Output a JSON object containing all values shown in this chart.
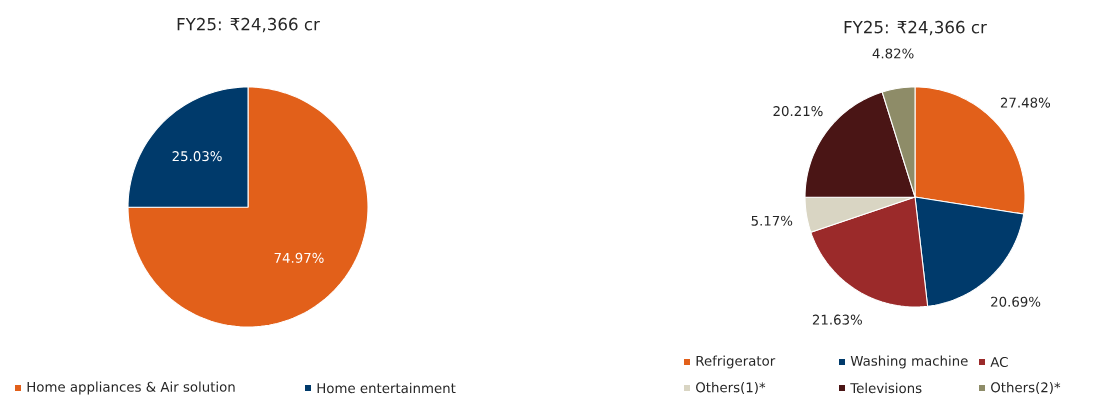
{
  "chart_data": [
    {
      "type": "pie",
      "title": "FY25: ₹24,366 cr",
      "categories": [
        "Home appliances & Air solution",
        "Home entertainment"
      ],
      "values": [
        74.97,
        25.03
      ],
      "colors": [
        "#e2601a",
        "#003a6b"
      ],
      "value_labels": [
        "74.97%",
        "25.03%"
      ],
      "legend": "bottom"
    },
    {
      "type": "pie",
      "title": "FY25: ₹24,366 cr",
      "categories": [
        "Refrigerator",
        "Washing machine",
        "AC",
        "Others(1)*",
        "Televisions",
        "Others(2)*"
      ],
      "values": [
        27.48,
        20.69,
        21.63,
        5.17,
        20.21,
        4.82
      ],
      "colors": [
        "#e2601a",
        "#003a6b",
        "#9b2a2a",
        "#d9d5c3",
        "#4a1515",
        "#8e8c68"
      ],
      "value_labels": [
        "27.48%",
        "20.69%",
        "21.63%",
        "5.17%",
        "20.21%",
        "4.82%"
      ],
      "legend": "bottom"
    }
  ]
}
